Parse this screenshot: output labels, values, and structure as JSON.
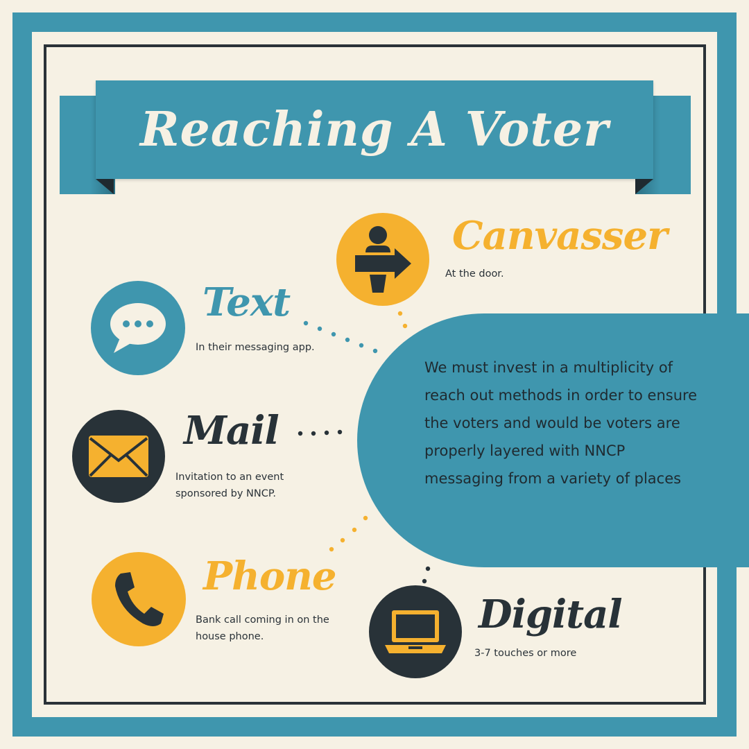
{
  "title": "Reaching A Voter",
  "colors": {
    "teal": "#3f96ae",
    "orange": "#f5b12f",
    "dark": "#283238",
    "cream": "#f6f1e4"
  },
  "methods": [
    {
      "heading": "Canvasser",
      "desc": "At the door.",
      "icon": "person-arrow-icon",
      "circle_color": "orange"
    },
    {
      "heading": "Text",
      "desc": "In their messaging app.",
      "icon": "chat-bubble-icon",
      "circle_color": "teal"
    },
    {
      "heading": "Mail",
      "desc": "Invitation to an event sponsored by NNCP.",
      "icon": "envelope-icon",
      "circle_color": "dark"
    },
    {
      "heading": "Phone",
      "desc": "Bank call coming in on the house phone.",
      "icon": "phone-handset-icon",
      "circle_color": "orange"
    },
    {
      "heading": "Digital",
      "desc": "3-7 touches or more",
      "icon": "laptop-icon",
      "circle_color": "dark"
    }
  ],
  "summary": "We must invest in a multiplicity of reach out methods in order to ensure the voters and would be voters are properly layered with NNCP messaging from a variety of places"
}
